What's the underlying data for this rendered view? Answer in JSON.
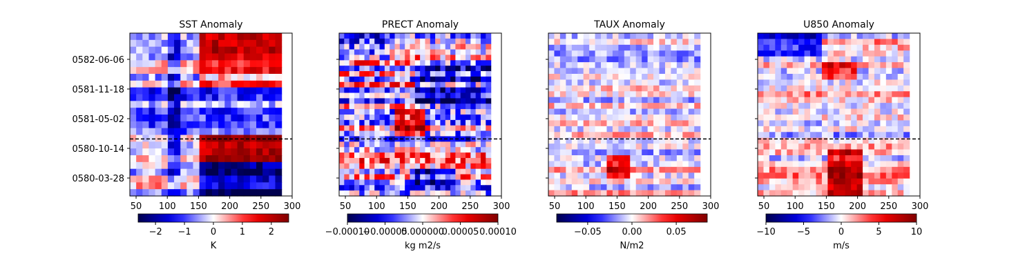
{
  "chart_data": [
    {
      "type": "heatmap",
      "title": "SST Anomaly",
      "xlim": [
        40,
        300
      ],
      "xticks": [
        50,
        100,
        150,
        200,
        250,
        300
      ],
      "data_lon_range": [
        40,
        283
      ],
      "yticks": [
        "0582-06-06",
        "0581-11-18",
        "0581-05-02",
        "0580-10-14",
        "0580-03-28"
      ],
      "show_ytick_labels": true,
      "reference_line_fraction_from_bottom": 0.35,
      "reference_line_style": "dashed",
      "colorbar": {
        "label": "K",
        "range": [
          -2.6,
          2.6
        ],
        "ticks": [
          -2,
          -1,
          0,
          1,
          2
        ],
        "tick_labels": [
          "−2",
          "−1",
          "0",
          "1",
          "2"
        ],
        "colormap": "seismic"
      },
      "cells": {
        "nx": 24,
        "ny": 24,
        "seed": 11,
        "amp": 0.55,
        "bands": [
          {
            "y0": 0.84,
            "y1": 1.0,
            "x0": 150,
            "x1": 283,
            "v": 0.85
          },
          {
            "y0": 0.66,
            "y1": 0.84,
            "x0": 150,
            "x1": 283,
            "v": 0.35
          },
          {
            "y0": 0.36,
            "y1": 0.66,
            "x0": 40,
            "x1": 283,
            "v": -0.3
          },
          {
            "y0": 0.2,
            "y1": 0.36,
            "x0": 150,
            "x1": 283,
            "v": 0.8
          },
          {
            "y0": 0.0,
            "y1": 0.2,
            "x0": 150,
            "x1": 283,
            "v": -0.75
          },
          {
            "y0": 0.0,
            "y1": 1.0,
            "x0": 100,
            "x1": 120,
            "v": -0.4
          }
        ]
      }
    },
    {
      "type": "heatmap",
      "title": "PRECT Anomaly",
      "xlim": [
        40,
        300
      ],
      "xticks": [
        50,
        100,
        150,
        200,
        250,
        300
      ],
      "data_lon_range": [
        40,
        283
      ],
      "yticks": [
        "0582-06-06",
        "0581-11-18",
        "0581-05-02",
        "0580-10-14",
        "0580-03-28"
      ],
      "show_ytick_labels": false,
      "reference_line_fraction_from_bottom": 0.35,
      "reference_line_style": "dashed",
      "colorbar": {
        "label": "kg m2/s",
        "range": [
          -0.0001,
          0.0001
        ],
        "ticks": [
          -0.0001,
          -5e-05,
          0,
          5e-05,
          0.0001
        ],
        "tick_labels": [
          "−0.00010",
          "−0.00005",
          "0.000000",
          "0.00005",
          "0.00010"
        ],
        "colormap": "seismic"
      },
      "cells": {
        "nx": 30,
        "ny": 30,
        "seed": 23,
        "amp": 0.9,
        "bands": [
          {
            "y0": 0.55,
            "y1": 0.82,
            "x0": 160,
            "x1": 283,
            "v": -0.45
          },
          {
            "y0": 0.36,
            "y1": 0.52,
            "x0": 130,
            "x1": 180,
            "v": 0.7
          },
          {
            "y0": 0.08,
            "y1": 0.18,
            "x0": 150,
            "x1": 230,
            "v": -0.6
          },
          {
            "y0": 0.85,
            "y1": 1.0,
            "x0": 40,
            "x1": 120,
            "v": -0.3
          }
        ]
      }
    },
    {
      "type": "heatmap",
      "title": "TAUX Anomaly",
      "xlim": [
        40,
        300
      ],
      "xticks": [
        50,
        100,
        150,
        200,
        250,
        300
      ],
      "data_lon_range": [
        40,
        283
      ],
      "yticks": [
        "0582-06-06",
        "0581-11-18",
        "0581-05-02",
        "0580-10-14",
        "0580-03-28"
      ],
      "show_ytick_labels": false,
      "reference_line_fraction_from_bottom": 0.35,
      "reference_line_style": "dashed",
      "colorbar": {
        "label": "N/m2",
        "range": [
          -0.085,
          0.085
        ],
        "ticks": [
          -0.05,
          0,
          0.05
        ],
        "tick_labels": [
          "−0.05",
          "0.00",
          "0.05"
        ],
        "colormap": "seismic"
      },
      "cells": {
        "nx": 26,
        "ny": 28,
        "seed": 37,
        "amp": 0.45,
        "bands": [
          {
            "y0": 0.0,
            "y1": 1.0,
            "x0": 100,
            "x1": 155,
            "v": 0.0
          },
          {
            "y0": 0.12,
            "y1": 0.25,
            "x0": 130,
            "x1": 170,
            "v": 0.6
          }
        ]
      }
    },
    {
      "type": "heatmap",
      "title": "U850 Anomaly",
      "xlim": [
        40,
        300
      ],
      "xticks": [
        50,
        100,
        150,
        200,
        250,
        300
      ],
      "data_lon_range": [
        40,
        283
      ],
      "yticks": [
        "0582-06-06",
        "0581-11-18",
        "0581-05-02",
        "0580-10-14",
        "0580-03-28"
      ],
      "show_ytick_labels": false,
      "reference_line_fraction_from_bottom": 0.35,
      "reference_line_style": "dashed",
      "colorbar": {
        "label": "m/s",
        "range": [
          -10,
          10
        ],
        "ticks": [
          -10,
          -5,
          0,
          5,
          10
        ],
        "tick_labels": [
          "−10",
          "−5",
          "0",
          "5",
          "10"
        ],
        "colormap": "seismic"
      },
      "cells": {
        "nx": 26,
        "ny": 28,
        "seed": 51,
        "amp": 0.5,
        "bands": [
          {
            "y0": 0.0,
            "y1": 0.3,
            "x0": 150,
            "x1": 210,
            "v": 0.6
          },
          {
            "y0": 0.85,
            "y1": 1.0,
            "x0": 40,
            "x1": 140,
            "v": -0.55
          },
          {
            "y0": 0.7,
            "y1": 0.82,
            "x0": 140,
            "x1": 200,
            "v": 0.5
          }
        ]
      }
    }
  ]
}
